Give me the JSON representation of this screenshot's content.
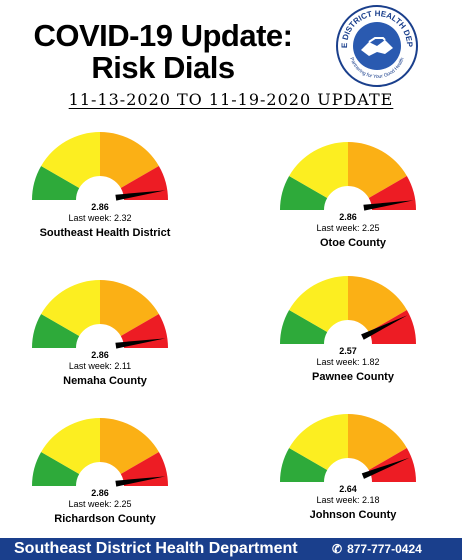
{
  "header": {
    "title_line1": "COVID-19 Update:",
    "title_line2": "Risk Dials",
    "date_range": "11-13-2020 TO 11-19-2020 UPDATE"
  },
  "logo": {
    "icon": "handshake-icon",
    "text_top": "SE DISTRICT HEALTH DEPT.",
    "text_bottom": "Partnering for Your Good Health",
    "color": "#1a3f8c"
  },
  "dial_colors": {
    "green": "#2eaa3a",
    "yellow": "#fcee21",
    "orange": "#fbb015",
    "red": "#ed1c24",
    "needle": "#000000"
  },
  "dial_scale": {
    "min": 0,
    "max": 3
  },
  "dials": [
    {
      "score": "2.86",
      "value": 2.86,
      "last_week": "Last week: 2.32",
      "district": "Southeast Health District"
    },
    {
      "score": "2.86",
      "value": 2.86,
      "last_week": "Last week: 2.25",
      "district": "Otoe County"
    },
    {
      "score": "2.86",
      "value": 2.86,
      "last_week": "Last week: 2.11",
      "district": "Nemaha County"
    },
    {
      "score": "2.57",
      "value": 2.57,
      "last_week": "Last week: 1.82",
      "district": "Pawnee County"
    },
    {
      "score": "2.86",
      "value": 2.86,
      "last_week": "Last week: 2.25",
      "district": "Richardson County"
    },
    {
      "score": "2.64",
      "value": 2.64,
      "last_week": "Last week: 2.18",
      "district": "Johnson County"
    }
  ],
  "footer": {
    "organization": "Southeast District Health Department",
    "phone": "877-777-0424",
    "phone_icon": "phone-icon"
  }
}
